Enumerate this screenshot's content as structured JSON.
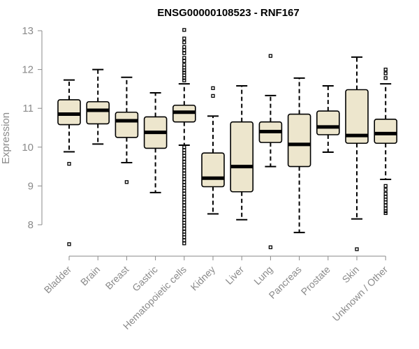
{
  "chart_data": {
    "type": "boxplot",
    "title": "ENSG00000108523 - RNF167",
    "xlabel": "",
    "ylabel": "Expression",
    "ylim": [
      7.3,
      13.1
    ],
    "yticks": [
      8,
      9,
      10,
      11,
      12,
      13
    ],
    "box_color": "#ede6cd",
    "groups": [
      {
        "name": "Bladder",
        "q1": 10.58,
        "median": 10.85,
        "q3": 11.22,
        "whisker_low": 9.88,
        "whisker_high": 11.73,
        "outliers": [
          9.57,
          7.5
        ]
      },
      {
        "name": "Brain",
        "q1": 10.6,
        "median": 10.95,
        "q3": 11.17,
        "whisker_low": 10.08,
        "whisker_high": 12.0,
        "outliers": []
      },
      {
        "name": "Breast",
        "q1": 10.25,
        "median": 10.68,
        "q3": 10.9,
        "whisker_low": 9.6,
        "whisker_high": 11.8,
        "outliers": [
          9.1
        ]
      },
      {
        "name": "Gastric",
        "q1": 9.97,
        "median": 10.38,
        "q3": 10.78,
        "whisker_low": 8.83,
        "whisker_high": 11.4,
        "outliers": []
      },
      {
        "name": "Hematopoietic cells",
        "q1": 10.65,
        "median": 10.9,
        "q3": 11.08,
        "whisker_low": 10.05,
        "whisker_high": 11.63,
        "outliers": [
          13.02,
          12.8,
          12.7,
          12.58,
          12.5,
          12.42,
          12.3,
          12.22,
          12.12,
          12.05,
          11.98,
          11.92,
          11.85,
          11.78,
          11.72,
          10.0,
          9.92,
          9.85,
          9.78,
          9.7,
          9.62,
          9.55,
          9.48,
          9.4,
          9.32,
          9.25,
          9.18,
          9.1,
          9.02,
          8.95,
          8.88,
          8.8,
          8.72,
          8.65,
          8.58,
          8.5,
          8.42,
          8.35,
          8.28,
          8.2,
          8.12,
          8.05,
          7.98,
          7.9,
          7.82,
          7.75,
          7.68,
          7.6,
          7.52
        ]
      },
      {
        "name": "Kidney",
        "q1": 8.98,
        "median": 9.2,
        "q3": 9.85,
        "whisker_low": 8.28,
        "whisker_high": 10.8,
        "outliers": [
          11.52,
          11.32
        ]
      },
      {
        "name": "Liver",
        "q1": 8.85,
        "median": 9.5,
        "q3": 10.65,
        "whisker_low": 8.13,
        "whisker_high": 11.58,
        "outliers": []
      },
      {
        "name": "Lung",
        "q1": 10.12,
        "median": 10.4,
        "q3": 10.65,
        "whisker_low": 9.5,
        "whisker_high": 11.33,
        "outliers": [
          12.35,
          7.42
        ]
      },
      {
        "name": "Pancreas",
        "q1": 9.5,
        "median": 10.07,
        "q3": 10.85,
        "whisker_low": 7.8,
        "whisker_high": 11.78,
        "outliers": []
      },
      {
        "name": "Prostate",
        "q1": 10.32,
        "median": 10.52,
        "q3": 10.93,
        "whisker_low": 9.87,
        "whisker_high": 11.58,
        "outliers": []
      },
      {
        "name": "Skin",
        "q1": 10.1,
        "median": 10.3,
        "q3": 11.48,
        "whisker_low": 8.15,
        "whisker_high": 12.32,
        "outliers": [
          7.37
        ]
      },
      {
        "name": "Unknown / Other",
        "q1": 10.1,
        "median": 10.35,
        "q3": 10.72,
        "whisker_low": 9.17,
        "whisker_high": 11.63,
        "outliers": [
          12.0,
          11.9,
          11.78,
          9.0,
          8.9,
          8.8,
          8.72,
          8.65,
          8.58,
          8.5,
          8.42,
          8.35,
          8.3
        ]
      }
    ]
  }
}
